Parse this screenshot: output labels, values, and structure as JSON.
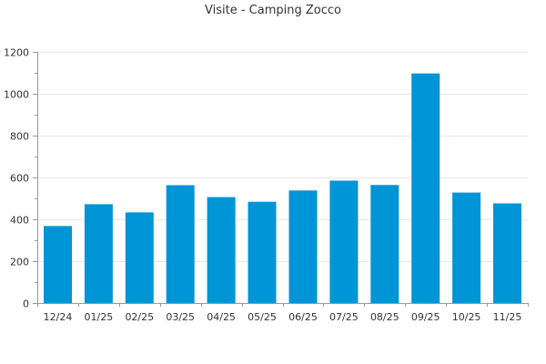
{
  "chart_data": {
    "type": "bar",
    "title": "Visite - Camping Zocco",
    "categories": [
      "12/24",
      "01/25",
      "02/25",
      "03/25",
      "04/25",
      "05/25",
      "06/25",
      "07/25",
      "08/25",
      "09/25",
      "10/25",
      "11/25"
    ],
    "values": [
      368,
      472,
      433,
      563,
      506,
      484,
      538,
      585,
      564,
      1097,
      528,
      476
    ],
    "ylim": [
      0,
      1200
    ],
    "yticks": [
      0,
      200,
      400,
      600,
      800,
      1000,
      1200
    ],
    "grid": true,
    "legend": "none",
    "colors": {
      "bar": "#0095d6"
    }
  }
}
